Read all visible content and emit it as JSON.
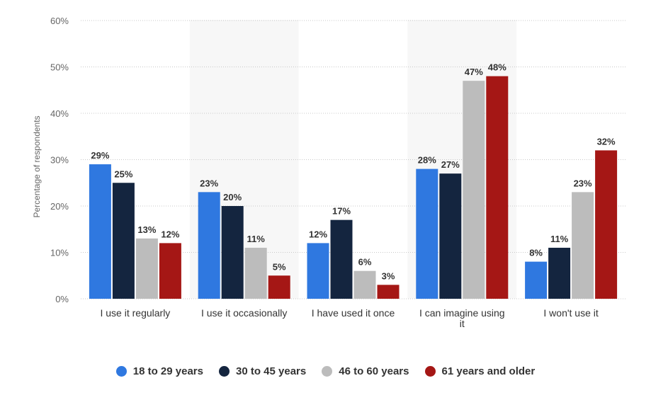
{
  "chart_data": {
    "type": "bar",
    "ylabel": "Percentage of respondents",
    "ylim": [
      0,
      60
    ],
    "yticks": [
      0,
      10,
      20,
      30,
      40,
      50,
      60
    ],
    "ytick_labels": [
      "0%",
      "10%",
      "20%",
      "30%",
      "40%",
      "50%",
      "60%"
    ],
    "grid": true,
    "legend_position": "bottom",
    "categories": [
      [
        "I use it regularly"
      ],
      [
        "I use it occasionally"
      ],
      [
        "I have used it once"
      ],
      [
        "I can imagine using",
        "it"
      ],
      [
        "I won't use it"
      ]
    ],
    "series": [
      {
        "name": "18 to 29 years",
        "color": "#2f78e0",
        "values": [
          29,
          23,
          12,
          28,
          8
        ],
        "labels": [
          "29%",
          "23%",
          "12%",
          "28%",
          "8%"
        ]
      },
      {
        "name": "30 to 45 years",
        "color": "#14253f",
        "values": [
          25,
          20,
          17,
          27,
          11
        ],
        "labels": [
          "25%",
          "20%",
          "17%",
          "27%",
          "11%"
        ]
      },
      {
        "name": "46 to 60 years",
        "color": "#bcbcbc",
        "values": [
          13,
          11,
          6,
          47,
          23
        ],
        "labels": [
          "13%",
          "11%",
          "6%",
          "47%",
          "23%"
        ]
      },
      {
        "name": "61 years and older",
        "color": "#a51715",
        "values": [
          12,
          5,
          3,
          48,
          32
        ],
        "labels": [
          "12%",
          "5%",
          "3%",
          "48%",
          "32%"
        ]
      }
    ]
  }
}
